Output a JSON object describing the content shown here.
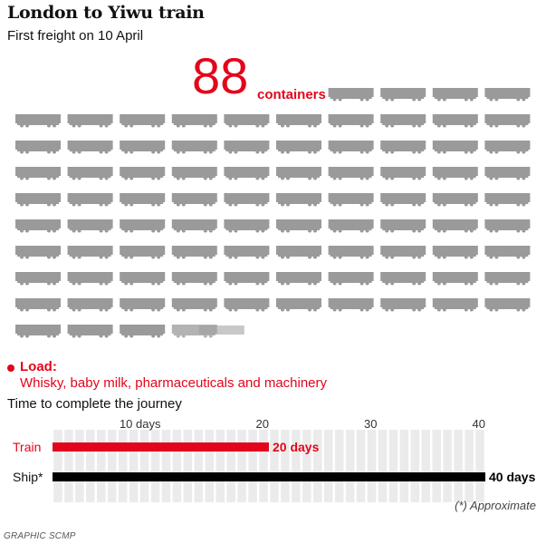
{
  "header": {
    "title": "London to Yiwu train",
    "subtitle": "First freight on 10 April"
  },
  "highlight": {
    "number": "88",
    "unit": "containers"
  },
  "load": {
    "label": "Load:",
    "text": "Whisky, baby milk, pharmaceuticals and machinery"
  },
  "colors": {
    "accent": "#e3051b",
    "ship": "#000000",
    "wagon": "#9a9a9a",
    "grid": "#ebebeb"
  },
  "footnote": "(*) Approximate",
  "credit": "GRAPHIC SCMP",
  "chart_data": [
    {
      "type": "pictogram",
      "total": 88,
      "icon": "freight-wagon-icon",
      "per_row": 10
    },
    {
      "type": "bar",
      "orientation": "horizontal",
      "title": "Time to complete the journey",
      "categories": [
        "Train",
        "Ship*"
      ],
      "values": [
        20,
        40
      ],
      "value_labels": [
        "20 days",
        "40 days"
      ],
      "category_colors": [
        "#e3051b",
        "#000000"
      ],
      "xlim": [
        0,
        40
      ],
      "xticks": [
        10,
        20,
        30,
        40
      ],
      "xtick_labels": [
        "10 days",
        "20",
        "30",
        "40"
      ]
    }
  ]
}
